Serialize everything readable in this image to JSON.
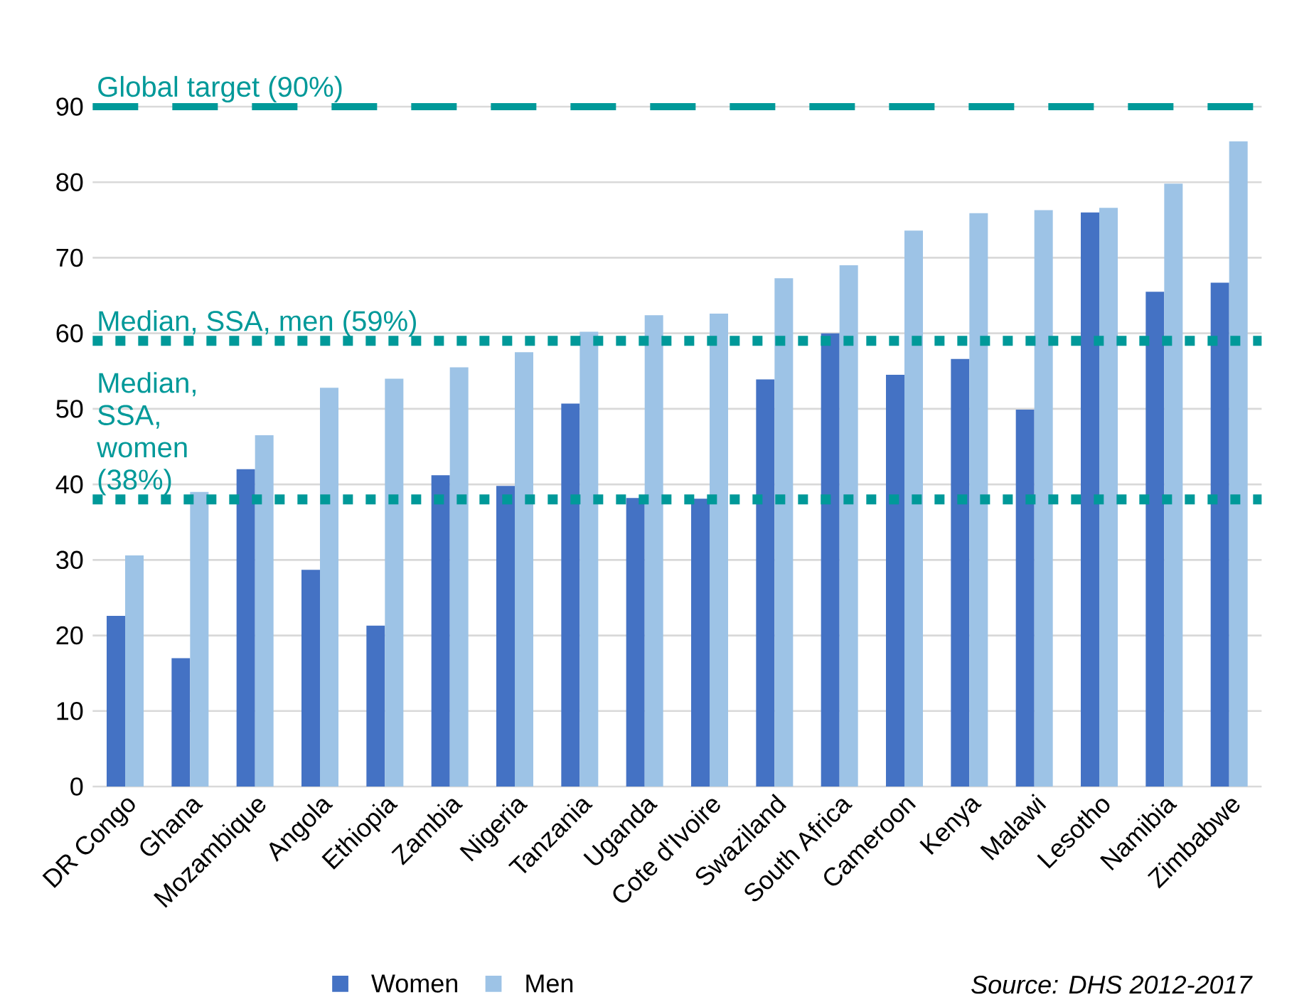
{
  "chart_data": {
    "type": "bar",
    "categories": [
      "DR Congo",
      "Ghana",
      "Mozambique",
      "Angola",
      "Ethiopia",
      "Zambia",
      "Nigeria",
      "Tanzania",
      "Uganda",
      "Cote d'Ivoire",
      "Swaziland",
      "South Africa",
      "Cameroon",
      "Kenya",
      "Malawi",
      "Lesotho",
      "Namibia",
      "Zimbabwe"
    ],
    "series": [
      {
        "name": "Women",
        "color": "#4472c4",
        "values": [
          22.6,
          17,
          42,
          28.7,
          21.3,
          41.2,
          39.8,
          50.7,
          38.2,
          38.1,
          53.9,
          60,
          54.5,
          56.6,
          49.9,
          76,
          65.5,
          66.7
        ]
      },
      {
        "name": "Men",
        "color": "#9dc3e6",
        "values": [
          30.6,
          39,
          46.5,
          52.8,
          54,
          55.5,
          57.5,
          60.2,
          62.4,
          62.6,
          67.3,
          69,
          73.6,
          75.9,
          76.3,
          76.6,
          79.8,
          85.4
        ]
      }
    ],
    "ylim": [
      0,
      90
    ],
    "yticks": [
      0,
      10,
      20,
      30,
      40,
      50,
      60,
      70,
      80,
      90
    ],
    "grid": "y",
    "legend": "bottom",
    "ref_lines": [
      {
        "axis": "y",
        "value": 90,
        "label": "Global target (90%)",
        "color": "#009999",
        "line_style": "dashed"
      },
      {
        "axis": "y",
        "value": 59,
        "label": "Median, SSA, men (59%)",
        "color": "#009999",
        "line_style": "dotted"
      },
      {
        "axis": "y",
        "value": 38,
        "label": "Median, SSA, women (38%)",
        "color": "#009999",
        "line_style": "dotted"
      }
    ],
    "annotations": [
      "*Source: DHS 2012-2017*"
    ]
  }
}
